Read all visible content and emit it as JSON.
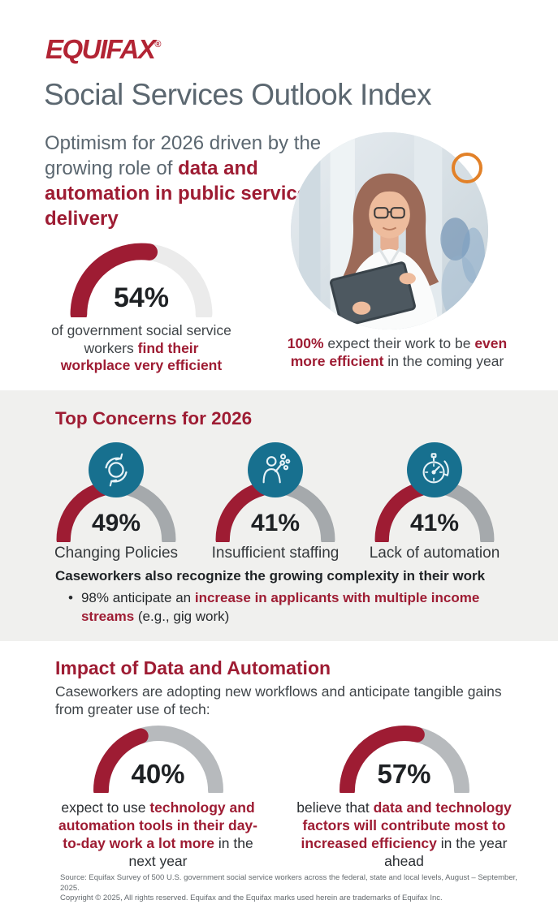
{
  "colors": {
    "crimson": "#9E1C33",
    "logo_red": "#B22434",
    "slate": "#5B6770",
    "teal": "#17708F",
    "band_bg": "#F0F0EE",
    "orange_ring": "#E28128",
    "track_light": "#EBEBEB",
    "track_mid": "#A5A9AC",
    "track_dark": "#B7BABD",
    "dark_text": "#3F4448",
    "percent_black": "#1E2124"
  },
  "header": {
    "logo_text": "EQUIFAX",
    "registered_mark": "®",
    "title": "Social Services Outlook Index"
  },
  "intro": {
    "segments": [
      {
        "t": "Optimism for 2026 driven by the growing role of "
      },
      {
        "t": "data and automation in public service delivery",
        "a": true
      }
    ]
  },
  "stats": {
    "workplace": {
      "percent_label": "54%",
      "caption_segments": [
        {
          "t": "of government social service workers "
        },
        {
          "t": "find their workplace very efficient",
          "a": true
        }
      ]
    },
    "outlook": {
      "segments": [
        {
          "t": "100%",
          "a": true
        },
        {
          "t": " expect their work to be "
        },
        {
          "t": "even more efficient",
          "a": true
        },
        {
          "t": " in the coming year"
        }
      ]
    }
  },
  "concerns": {
    "heading": "Top Concerns for 2026",
    "items": [
      {
        "icon": "sync-arrows-icon",
        "percent_label": "49%",
        "label": "Changing Policies"
      },
      {
        "icon": "juggling-person-icon",
        "percent_label": "41%",
        "label": "Insufficient staffing"
      },
      {
        "icon": "stopwatch-icon",
        "percent_label": "41%",
        "label": "Lack of automation"
      }
    ],
    "note_title": "Caseworkers also recognize the growing complexity in their work",
    "bullet_char": "•",
    "bullet_segments": [
      {
        "t": "98% anticipate an "
      },
      {
        "t": "increase in applicants with multiple income streams",
        "a": true
      },
      {
        "t": " (e.g., gig work)"
      }
    ]
  },
  "impact": {
    "heading": "Impact of Data and Automation",
    "intro": "Caseworkers are adopting new workflows and anticipate tangible gains from greater use of tech:",
    "items": [
      {
        "percent_label": "40%",
        "caption_segments": [
          {
            "t": "expect to use "
          },
          {
            "t": "technology and automation tools in their day-to-day work a lot more",
            "a": true
          },
          {
            "t": " in the next year"
          }
        ]
      },
      {
        "percent_label": "57%",
        "caption_segments": [
          {
            "t": "believe that "
          },
          {
            "t": "data and technology factors will contribute most to increased efficiency",
            "a": true
          },
          {
            "t": " in the year ahead"
          }
        ]
      }
    ]
  },
  "footer": {
    "line1": "Source: Equifax Survey of 500 U.S. government social service workers across the federal, state and local levels, August – September, 2025.",
    "line2": "Copyright © 2025, All rights reserved. Equifax and the Equifax marks used herein are trademarks of Equifax Inc."
  },
  "chart_data": {
    "type": "gauge",
    "title": "Social Services Outlook Index",
    "gauges": [
      {
        "value": 54,
        "max": 100,
        "label": "of government social service workers find their workplace very efficient"
      },
      {
        "value": 49,
        "max": 100,
        "label": "Changing Policies",
        "group": "Top Concerns for 2026"
      },
      {
        "value": 41,
        "max": 100,
        "label": "Insufficient staffing",
        "group": "Top Concerns for 2026"
      },
      {
        "value": 41,
        "max": 100,
        "label": "Lack of automation",
        "group": "Top Concerns for 2026"
      },
      {
        "value": 40,
        "max": 100,
        "label": "expect to use technology and automation tools in their day-to-day work a lot more in the next year",
        "group": "Impact of Data and Automation"
      },
      {
        "value": 57,
        "max": 100,
        "label": "believe that data and technology factors will contribute most to increased efficiency in the year ahead",
        "group": "Impact of Data and Automation"
      }
    ],
    "other_stats": [
      {
        "value": 100,
        "label": "expect their work to be even more efficient in the coming year"
      },
      {
        "value": 98,
        "label": "anticipate an increase in applicants with multiple income streams (e.g., gig work)"
      }
    ]
  }
}
